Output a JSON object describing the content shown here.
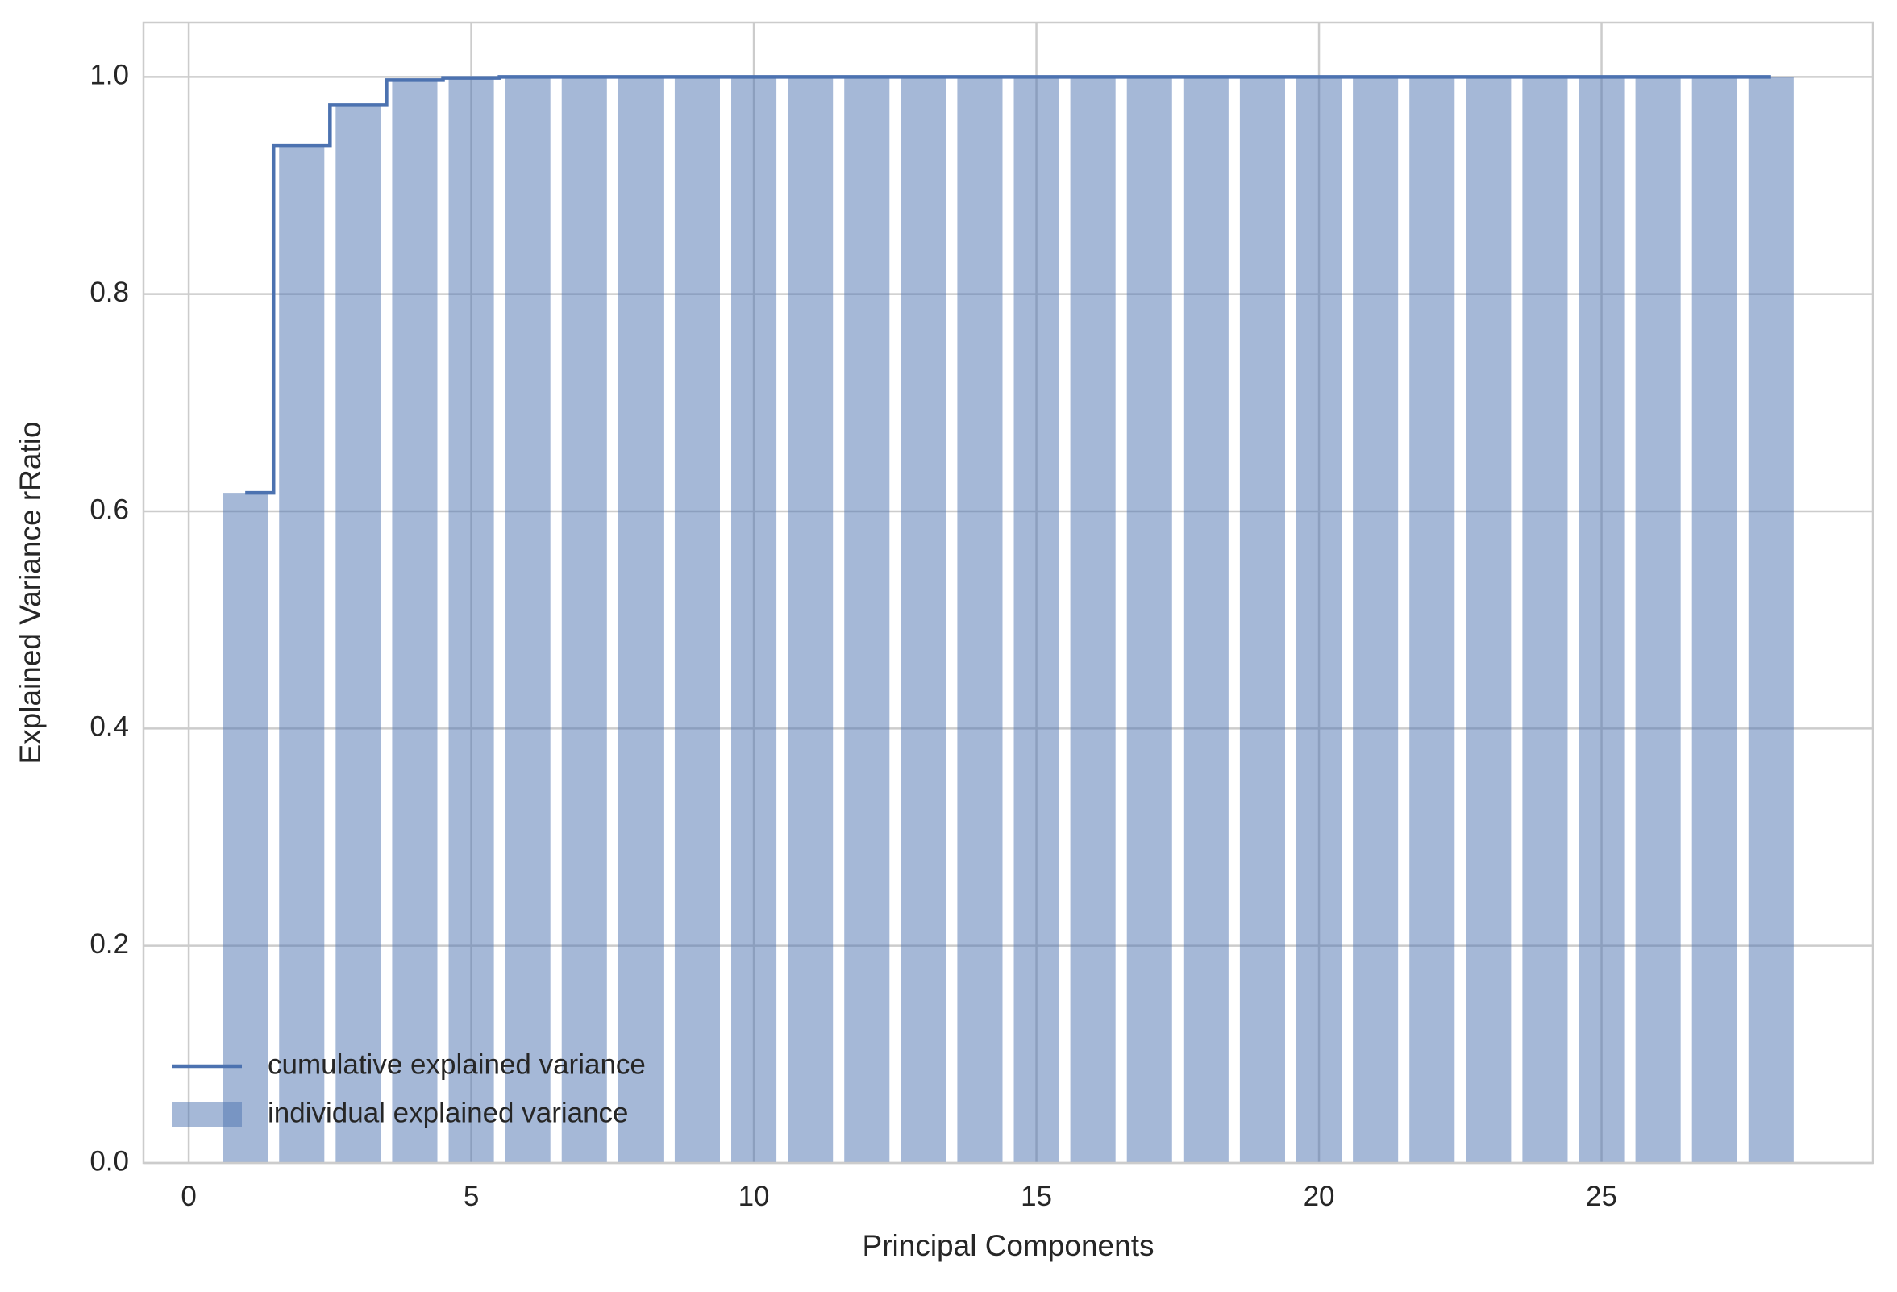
{
  "chart_data": {
    "type": "bar",
    "title": "",
    "xlabel": "Principal Components",
    "ylabel": "Explained Variance rRatio",
    "xlim": [
      -0.8,
      29.8
    ],
    "ylim": [
      0.0,
      1.05
    ],
    "xticks": [
      0,
      5,
      10,
      15,
      20,
      25
    ],
    "xtick_labels": [
      "0",
      "5",
      "10",
      "15",
      "20",
      "25"
    ],
    "yticks": [
      0.0,
      0.2,
      0.4,
      0.6,
      0.8,
      1.0
    ],
    "ytick_labels": [
      "0.0",
      "0.2",
      "0.4",
      "0.6",
      "0.8",
      "1.0"
    ],
    "grid": true,
    "legend_position": "lower-left",
    "categories": [
      1,
      2,
      3,
      4,
      5,
      6,
      7,
      8,
      9,
      10,
      11,
      12,
      13,
      14,
      15,
      16,
      17,
      18,
      19,
      20,
      21,
      22,
      23,
      24,
      25,
      26,
      27,
      28
    ],
    "series": [
      {
        "name": "individual explained variance",
        "kind": "bar",
        "color": "#4c72b0",
        "opacity": 0.5,
        "values": [
          0.617,
          0.937,
          0.974,
          0.997,
          0.999,
          1.0,
          1.0,
          1.0,
          1.0,
          1.0,
          1.0,
          1.0,
          1.0,
          1.0,
          1.0,
          1.0,
          1.0,
          1.0,
          1.0,
          1.0,
          1.0,
          1.0,
          1.0,
          1.0,
          1.0,
          1.0,
          1.0,
          1.0
        ]
      },
      {
        "name": "cumulative explained variance",
        "kind": "step",
        "color": "#4c72b0",
        "values": [
          0.617,
          0.937,
          0.974,
          0.997,
          0.999,
          1.0,
          1.0,
          1.0,
          1.0,
          1.0,
          1.0,
          1.0,
          1.0,
          1.0,
          1.0,
          1.0,
          1.0,
          1.0,
          1.0,
          1.0,
          1.0,
          1.0,
          1.0,
          1.0,
          1.0,
          1.0,
          1.0,
          1.0
        ]
      }
    ],
    "colors": {
      "background": "#ffffff",
      "grid": "#cccccc",
      "axes_edge": "#cccccc",
      "text": "#262626"
    }
  }
}
